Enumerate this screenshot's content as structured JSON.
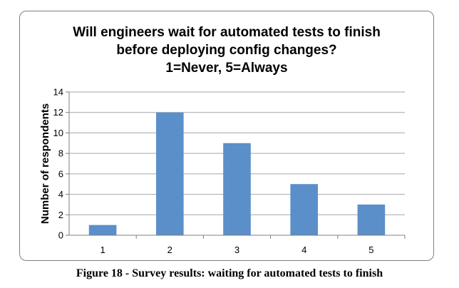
{
  "chart_data": {
    "type": "bar",
    "title_lines": [
      "Will engineers wait for automated tests to finish",
      "before deploying config changes?",
      "1=Never, 5=Always"
    ],
    "categories": [
      "1",
      "2",
      "3",
      "4",
      "5"
    ],
    "values": [
      1,
      12,
      9,
      5,
      3
    ],
    "xlabel": "",
    "ylabel": "Number of respondents",
    "ylim": [
      0,
      14
    ],
    "yticks": [
      "0",
      "2",
      "4",
      "6",
      "8",
      "10",
      "12",
      "14"
    ],
    "grid": true,
    "bar_color": "#5b8fc9",
    "grid_color": "#a6a6a6"
  },
  "caption": "Figure 18 - Survey results: waiting for automated tests to finish"
}
